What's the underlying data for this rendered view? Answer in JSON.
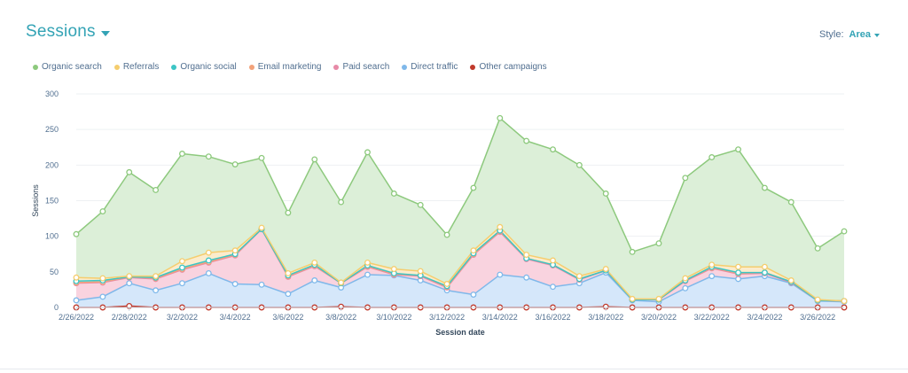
{
  "header": {
    "title": "Sessions",
    "style_label": "Style:",
    "style_value": "Area"
  },
  "chart_data": {
    "type": "area",
    "stacked": true,
    "xlabel": "Session date",
    "ylabel": "Sessions",
    "ylim": [
      0,
      300
    ],
    "yticks": [
      0,
      50,
      100,
      150,
      200,
      250,
      300
    ],
    "x": [
      "2/26/2022",
      "2/27/2022",
      "2/28/2022",
      "3/1/2022",
      "3/2/2022",
      "3/3/2022",
      "3/4/2022",
      "3/5/2022",
      "3/6/2022",
      "3/7/2022",
      "3/8/2022",
      "3/9/2022",
      "3/10/2022",
      "3/11/2022",
      "3/12/2022",
      "3/13/2022",
      "3/14/2022",
      "3/15/2022",
      "3/16/2022",
      "3/17/2022",
      "3/18/2022",
      "3/19/2022",
      "3/20/2022",
      "3/21/2022",
      "3/22/2022",
      "3/23/2022",
      "3/24/2022",
      "3/25/2022",
      "3/26/2022",
      "3/27/2022"
    ],
    "xtick_labels": [
      "2/26/2022",
      "2/28/2022",
      "3/2/2022",
      "3/4/2022",
      "3/6/2022",
      "3/8/2022",
      "3/10/2022",
      "3/12/2022",
      "3/14/2022",
      "3/16/2022",
      "3/18/2022",
      "3/20/2022",
      "3/22/2022",
      "3/24/2022",
      "3/26/2022"
    ],
    "grid": true,
    "legend_position": "top-left",
    "series": [
      {
        "name": "Other campaigns",
        "color": "#c0392b",
        "fill": "#e8b5ad",
        "values": [
          0,
          0,
          2,
          0,
          0,
          0,
          0,
          0,
          0,
          0,
          1,
          0,
          0,
          0,
          0,
          0,
          0,
          0,
          0,
          0,
          1,
          0,
          0,
          0,
          0,
          0,
          0,
          0,
          0,
          0
        ]
      },
      {
        "name": "Direct traffic",
        "color": "#7fb8ea",
        "fill": "#d5e7fa",
        "values": [
          10,
          15,
          32,
          24,
          34,
          48,
          33,
          32,
          19,
          38,
          27,
          46,
          45,
          38,
          24,
          18,
          46,
          42,
          29,
          34,
          48,
          10,
          8,
          27,
          44,
          40,
          44,
          34,
          9,
          8
        ]
      },
      {
        "name": "Paid search",
        "color": "#e78aa7",
        "fill": "#f9d3df",
        "values": [
          24,
          20,
          8,
          16,
          19,
          15,
          40,
          78,
          24,
          20,
          6,
          11,
          1,
          6,
          4,
          56,
          60,
          26,
          30,
          5,
          3,
          1,
          3,
          10,
          11,
          7,
          4,
          1,
          1,
          1
        ]
      },
      {
        "name": "Email marketing",
        "color": "#f2a27a",
        "fill": "#fbe0d0",
        "values": [
          1,
          1,
          1,
          1,
          1,
          1,
          1,
          0,
          1,
          1,
          0,
          1,
          1,
          1,
          1,
          1,
          1,
          1,
          1,
          1,
          0,
          0,
          0,
          1,
          1,
          1,
          1,
          1,
          0,
          0
        ]
      },
      {
        "name": "Organic social",
        "color": "#3cc5c5",
        "fill": "#c7eeee",
        "values": [
          2,
          2,
          0,
          1,
          2,
          2,
          1,
          0,
          1,
          1,
          0,
          1,
          1,
          0,
          1,
          1,
          1,
          0,
          0,
          0,
          0,
          0,
          0,
          0,
          1,
          1,
          0,
          0,
          0,
          0
        ]
      },
      {
        "name": "Referrals",
        "color": "#f5cd6e",
        "fill": "#fbeccc",
        "values": [
          5,
          3,
          1,
          2,
          9,
          11,
          5,
          2,
          3,
          3,
          1,
          4,
          6,
          6,
          3,
          4,
          5,
          5,
          6,
          4,
          2,
          1,
          1,
          3,
          3,
          8,
          8,
          2,
          1,
          0
        ]
      },
      {
        "name": "Organic search",
        "color": "#8dc97d",
        "fill": "#dcefd8",
        "values": [
          61,
          94,
          146,
          121,
          151,
          135,
          121,
          98,
          85,
          145,
          113,
          155,
          106,
          93,
          69,
          88,
          153,
          160,
          156,
          156,
          106,
          66,
          78,
          141,
          151,
          165,
          111,
          110,
          72,
          98
        ]
      }
    ]
  }
}
